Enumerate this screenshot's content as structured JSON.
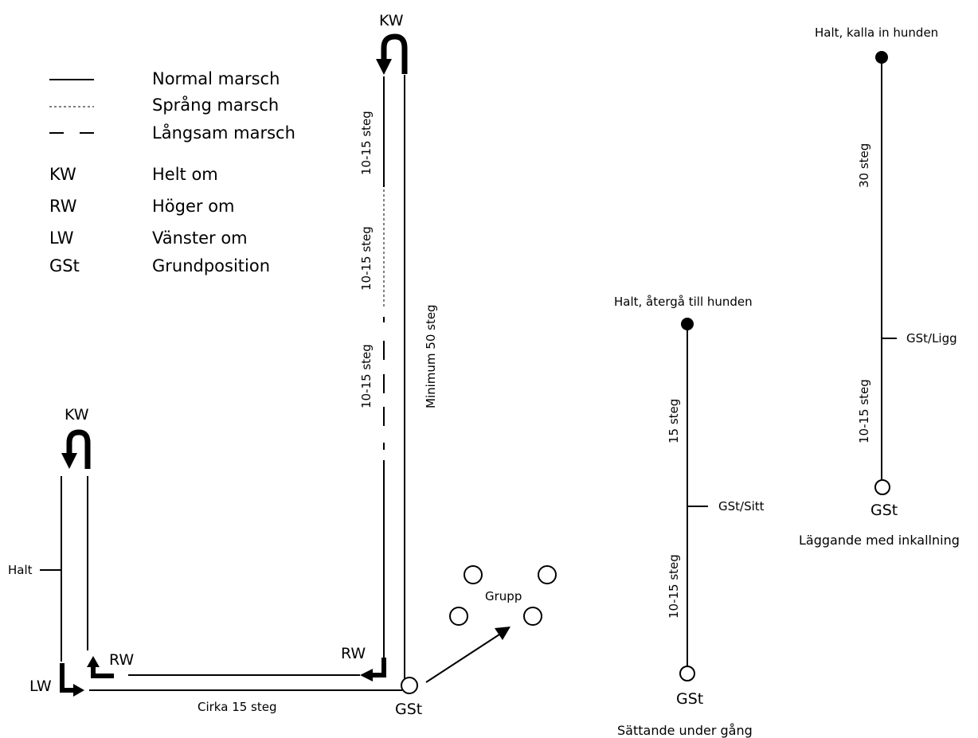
{
  "legend": {
    "items": [
      {
        "label": "Normal marsch"
      },
      {
        "label": "Språng marsch"
      },
      {
        "label": "Långsam marsch"
      },
      {
        "code": "KW",
        "label": "Helt om"
      },
      {
        "code": "RW",
        "label": "Höger om"
      },
      {
        "code": "LW",
        "label": "Vänster om"
      },
      {
        "code": "GSt",
        "label": "Grundposition"
      }
    ]
  },
  "main_course": {
    "kw_top": "KW",
    "kw_left": "KW",
    "rw_right": "RW",
    "rw_left": "RW",
    "lw_left": "LW",
    "halt": "Halt",
    "seg_normal": "10-15 steg",
    "seg_sprang": "10-15 steg",
    "seg_langsam": "10-15 steg",
    "minimum": "Minimum 50 steg",
    "cirka": "Cirka 15 steg",
    "gst": "GSt",
    "grupp": "Grupp"
  },
  "sattande": {
    "top_label": "Halt, återgå till hunden",
    "upper_steps": "15 steg",
    "marker": "GSt/Sitt",
    "lower_steps": "10-15 steg",
    "gst": "GSt",
    "caption": "Sättande under gång"
  },
  "laggande": {
    "top_label": "Halt, kalla in hunden",
    "upper_steps": "30 steg",
    "marker": "GSt/Ligg",
    "lower_steps": "10-15 steg",
    "gst": "GSt",
    "caption": "Läggande med inkallning"
  }
}
